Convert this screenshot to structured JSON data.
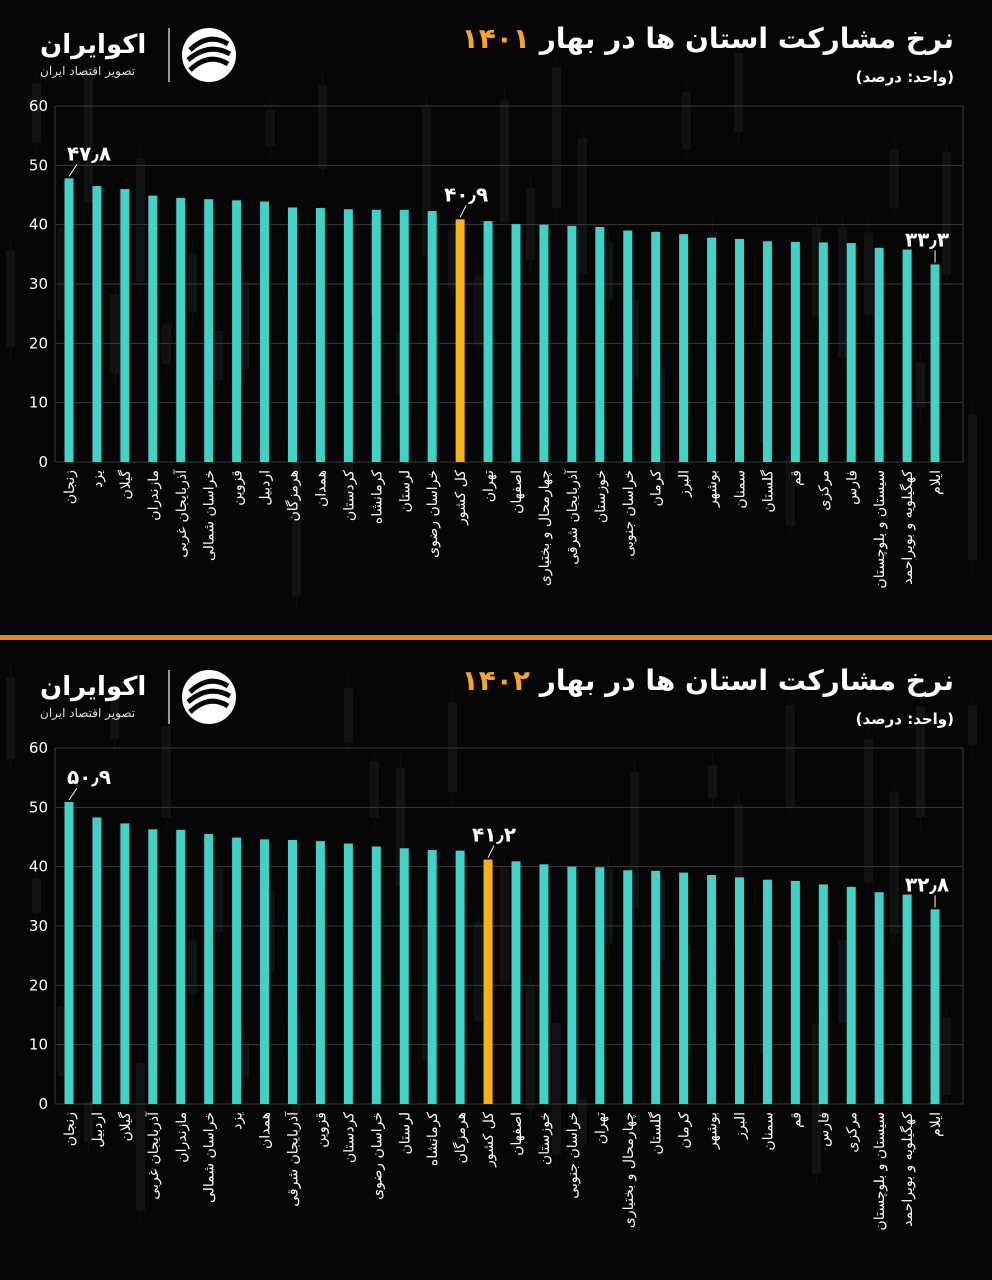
{
  "colors": {
    "bar": "#3fd3c8",
    "highlight": "#f7b217",
    "grid": "#3a3a3a",
    "accent": "#e8821e",
    "title_year": "#f5a623"
  },
  "logo": {
    "name": "اکوایران",
    "tagline": "تصویر اقتصاد ایران",
    "icon": "ecoiran-swirl-icon"
  },
  "charts": [
    {
      "title_text": "نرخ مشارکت استان ها در بهار",
      "title_year": "۱۴۰۱",
      "unit": "(واحد: درصد)"
    },
    {
      "title_text": "نرخ مشارکت استان ها در بهار",
      "title_year": "۱۴۰۲",
      "unit": "(واحد: درصد)"
    }
  ],
  "chart_data": [
    {
      "type": "bar",
      "title": "نرخ مشارکت استان ها در بهار ۱۴۰۱",
      "ylabel": "(واحد: درصد)",
      "ylim": [
        0,
        60
      ],
      "yticks": [
        "0",
        "10",
        "20",
        "30",
        "40",
        "50",
        "60"
      ],
      "grid": true,
      "categories": [
        "زنجان",
        "یزد",
        "گیلان",
        "مازندران",
        "آذربایجان غربی",
        "خراسان شمالی",
        "قزوین",
        "اردبیل",
        "هرمزگان",
        "همدان",
        "کردستان",
        "کرمانشاه",
        "لرستان",
        "خراسان رضوی",
        "کل کشور",
        "تهران",
        "اصفهان",
        "چهارمحال و بختیاری",
        "آذربایجان شرقی",
        "خوزستان",
        "خراسان جنوبی",
        "کرمان",
        "البرز",
        "بوشهر",
        "سمنان",
        "گلستان",
        "قم",
        "مرکزی",
        "فارس",
        "سیستان و بلوچستان",
        "کهگیلویه و بویراحمد",
        "ایلام"
      ],
      "values": [
        47.8,
        46.5,
        46.0,
        44.9,
        44.5,
        44.3,
        44.1,
        43.9,
        42.9,
        42.8,
        42.6,
        42.5,
        42.5,
        42.3,
        40.9,
        40.6,
        40.1,
        40.0,
        39.8,
        39.6,
        39.0,
        38.8,
        38.4,
        37.8,
        37.6,
        37.2,
        37.1,
        37.0,
        36.9,
        36.1,
        35.8,
        33.3
      ],
      "highlight": "کل کشور",
      "data_labels": [
        {
          "category": "زنجان",
          "text": "۴۷٫۸"
        },
        {
          "category": "کل کشور",
          "text": "۴۰٫۹"
        },
        {
          "category": "ایلام",
          "text": "۳۳٫۳"
        }
      ]
    },
    {
      "type": "bar",
      "title": "نرخ مشارکت استان ها در بهار ۱۴۰۲",
      "ylabel": "(واحد: درصد)",
      "ylim": [
        0,
        60
      ],
      "yticks": [
        "0",
        "10",
        "20",
        "30",
        "40",
        "50",
        "60"
      ],
      "grid": true,
      "categories": [
        "زنجان",
        "اردبیل",
        "گیلان",
        "آذربایجان غربی",
        "مازندران",
        "خراسان شمالی",
        "یزد",
        "همدان",
        "آذربایجان شرقی",
        "قزوین",
        "کردستان",
        "خراسان رضوی",
        "لرستان",
        "کرمانشاه",
        "هرمزگان",
        "کل کشور",
        "اصفهان",
        "خوزستان",
        "خراسان جنوبی",
        "تهران",
        "چهارمحال و بختیاری",
        "گلستان",
        "کرمان",
        "بوشهر",
        "البرز",
        "سمنان",
        "قم",
        "فارس",
        "مرکزی",
        "سیستان و بلوچستان",
        "کهگیلویه و بویراحمد",
        "ایلام"
      ],
      "values": [
        50.9,
        48.3,
        47.3,
        46.3,
        46.2,
        45.5,
        44.9,
        44.6,
        44.5,
        44.3,
        43.9,
        43.4,
        43.1,
        42.8,
        42.7,
        41.2,
        40.9,
        40.4,
        40.0,
        39.9,
        39.4,
        39.3,
        39.0,
        38.6,
        38.2,
        37.8,
        37.6,
        37.0,
        36.6,
        35.7,
        35.3,
        32.8
      ],
      "highlight": "کل کشور",
      "data_labels": [
        {
          "category": "زنجان",
          "text": "۵۰٫۹"
        },
        {
          "category": "کل کشور",
          "text": "۴۱٫۲"
        },
        {
          "category": "ایلام",
          "text": "۳۲٫۸"
        }
      ]
    }
  ]
}
